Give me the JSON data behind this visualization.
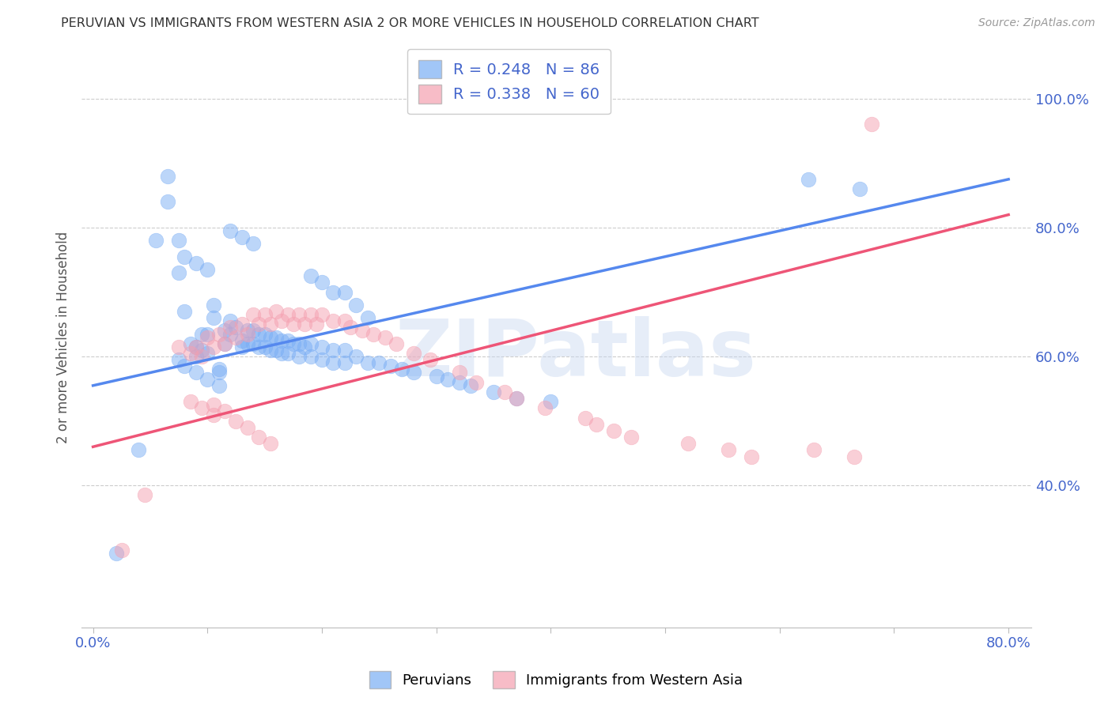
{
  "title": "PERUVIAN VS IMMIGRANTS FROM WESTERN ASIA 2 OR MORE VEHICLES IN HOUSEHOLD CORRELATION CHART",
  "source_text": "Source: ZipAtlas.com",
  "ylabel": "2 or more Vehicles in Household",
  "xlim": [
    -0.01,
    0.82
  ],
  "ylim": [
    0.18,
    1.08
  ],
  "xticks": [
    0.0,
    0.1,
    0.2,
    0.3,
    0.4,
    0.5,
    0.6,
    0.7,
    0.8
  ],
  "xticklabels": [
    "0.0%",
    "",
    "",
    "",
    "",
    "",
    "",
    "",
    "80.0%"
  ],
  "ytick_positions": [
    0.4,
    0.6,
    0.8,
    1.0
  ],
  "yticklabels": [
    "40.0%",
    "60.0%",
    "80.0%",
    "100.0%"
  ],
  "grid_color": "#cccccc",
  "blue_color": "#7aaef5",
  "pink_color": "#f5a0b0",
  "blue_line_color": "#5588ee",
  "pink_line_color": "#ee5577",
  "legend_blue_label": "R = 0.248   N = 86",
  "legend_pink_label": "R = 0.338   N = 60",
  "watermark": "ZIPatlas",
  "legend_label_peruvians": "Peruvians",
  "legend_label_immigrants": "Immigrants from Western Asia",
  "blue_line_x0": 0.0,
  "blue_line_y0": 0.555,
  "blue_line_x1": 0.8,
  "blue_line_y1": 0.875,
  "pink_line_x0": 0.0,
  "pink_line_y0": 0.46,
  "pink_line_x1": 0.8,
  "pink_line_y1": 0.82,
  "blue_scatter_x": [
    0.02,
    0.055,
    0.065,
    0.065,
    0.075,
    0.075,
    0.08,
    0.085,
    0.09,
    0.09,
    0.095,
    0.095,
    0.1,
    0.1,
    0.105,
    0.105,
    0.11,
    0.11,
    0.115,
    0.115,
    0.12,
    0.12,
    0.125,
    0.13,
    0.13,
    0.135,
    0.135,
    0.14,
    0.14,
    0.145,
    0.145,
    0.15,
    0.15,
    0.155,
    0.155,
    0.16,
    0.16,
    0.165,
    0.165,
    0.17,
    0.17,
    0.175,
    0.18,
    0.18,
    0.185,
    0.19,
    0.19,
    0.2,
    0.2,
    0.21,
    0.21,
    0.22,
    0.22,
    0.23,
    0.24,
    0.25,
    0.26,
    0.27,
    0.28,
    0.3,
    0.31,
    0.32,
    0.33,
    0.35,
    0.37,
    0.4,
    0.22,
    0.23,
    0.24,
    0.19,
    0.2,
    0.21,
    0.12,
    0.13,
    0.14,
    0.08,
    0.09,
    0.1,
    0.625,
    0.67,
    0.075,
    0.08,
    0.09,
    0.1,
    0.11,
    0.04
  ],
  "blue_scatter_y": [
    0.295,
    0.78,
    0.88,
    0.84,
    0.73,
    0.78,
    0.67,
    0.62,
    0.615,
    0.6,
    0.635,
    0.61,
    0.635,
    0.605,
    0.68,
    0.66,
    0.58,
    0.575,
    0.64,
    0.62,
    0.655,
    0.635,
    0.645,
    0.625,
    0.615,
    0.64,
    0.62,
    0.64,
    0.62,
    0.635,
    0.615,
    0.635,
    0.615,
    0.63,
    0.61,
    0.63,
    0.61,
    0.625,
    0.605,
    0.625,
    0.605,
    0.62,
    0.62,
    0.6,
    0.615,
    0.62,
    0.6,
    0.615,
    0.595,
    0.61,
    0.59,
    0.61,
    0.59,
    0.6,
    0.59,
    0.59,
    0.585,
    0.58,
    0.575,
    0.57,
    0.565,
    0.56,
    0.555,
    0.545,
    0.535,
    0.53,
    0.7,
    0.68,
    0.66,
    0.725,
    0.715,
    0.7,
    0.795,
    0.785,
    0.775,
    0.755,
    0.745,
    0.735,
    0.875,
    0.86,
    0.595,
    0.585,
    0.575,
    0.565,
    0.555,
    0.455
  ],
  "pink_scatter_x": [
    0.025,
    0.045,
    0.075,
    0.085,
    0.09,
    0.095,
    0.1,
    0.105,
    0.11,
    0.115,
    0.12,
    0.125,
    0.13,
    0.135,
    0.14,
    0.145,
    0.15,
    0.155,
    0.16,
    0.165,
    0.17,
    0.175,
    0.18,
    0.185,
    0.19,
    0.195,
    0.2,
    0.21,
    0.22,
    0.225,
    0.235,
    0.245,
    0.255,
    0.265,
    0.28,
    0.295,
    0.32,
    0.335,
    0.36,
    0.37,
    0.395,
    0.43,
    0.44,
    0.455,
    0.47,
    0.52,
    0.555,
    0.575,
    0.63,
    0.665,
    0.105,
    0.115,
    0.125,
    0.135,
    0.145,
    0.155,
    0.085,
    0.095,
    0.105,
    0.68
  ],
  "pink_scatter_y": [
    0.3,
    0.385,
    0.615,
    0.605,
    0.615,
    0.6,
    0.63,
    0.615,
    0.635,
    0.62,
    0.645,
    0.63,
    0.65,
    0.635,
    0.665,
    0.65,
    0.665,
    0.65,
    0.67,
    0.655,
    0.665,
    0.65,
    0.665,
    0.65,
    0.665,
    0.65,
    0.665,
    0.655,
    0.655,
    0.645,
    0.64,
    0.635,
    0.63,
    0.62,
    0.605,
    0.595,
    0.575,
    0.56,
    0.545,
    0.535,
    0.52,
    0.505,
    0.495,
    0.485,
    0.475,
    0.465,
    0.455,
    0.445,
    0.455,
    0.445,
    0.525,
    0.515,
    0.5,
    0.49,
    0.475,
    0.465,
    0.53,
    0.52,
    0.51,
    0.96
  ]
}
